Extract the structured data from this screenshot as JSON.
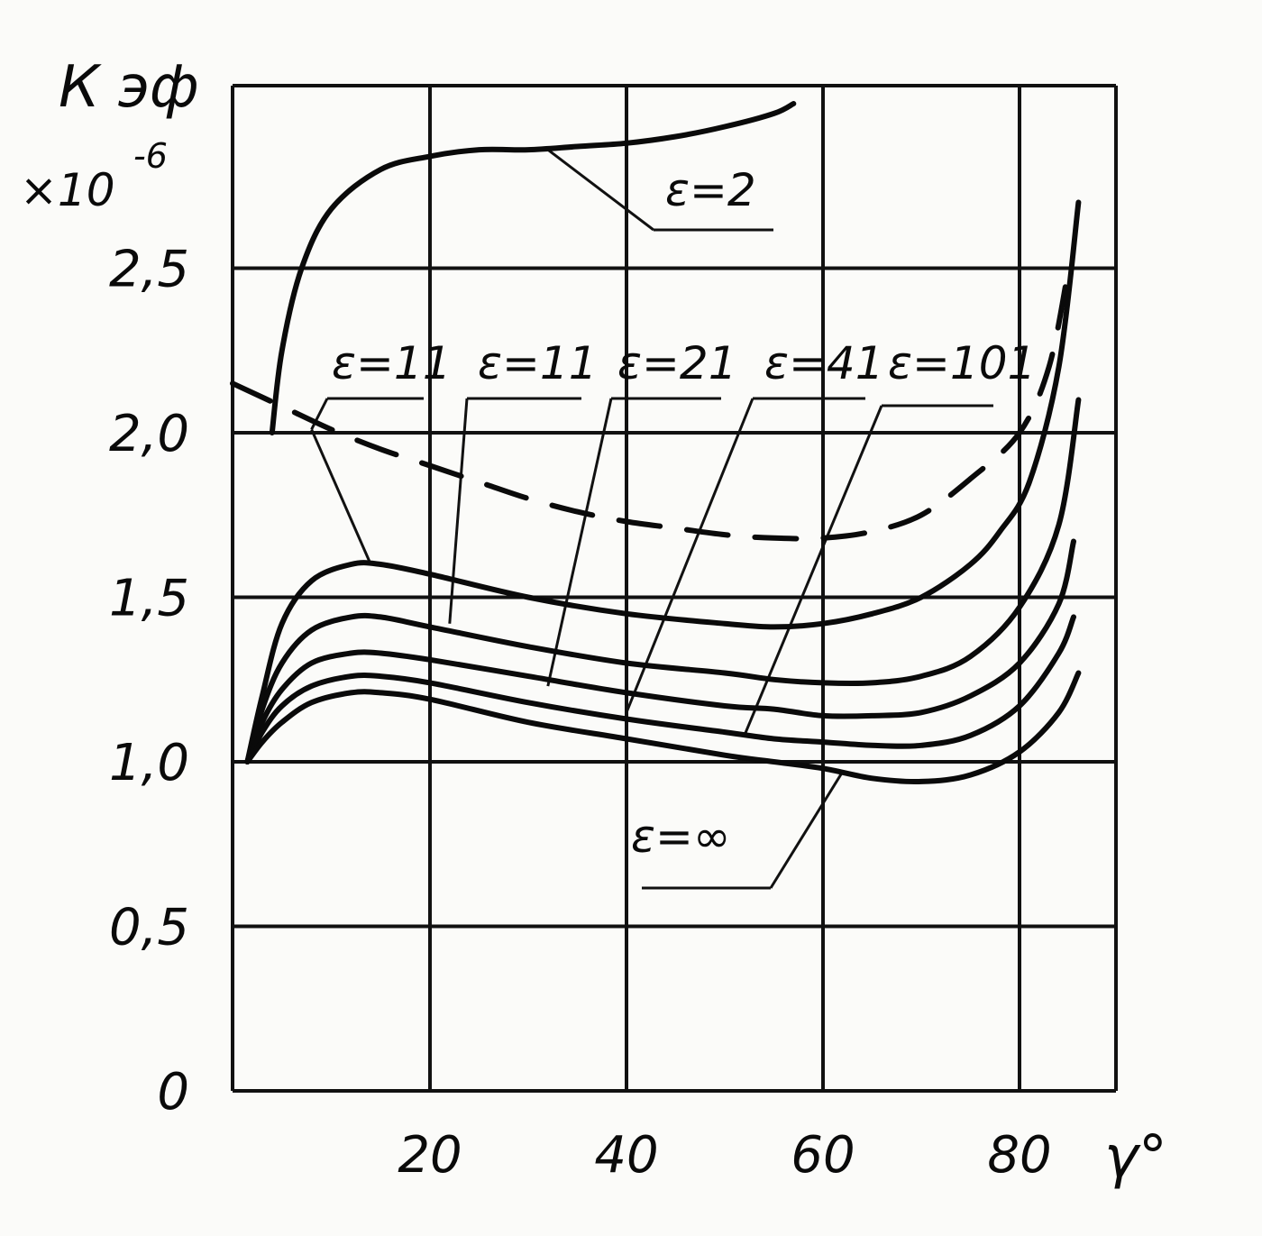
{
  "chart_data": {
    "type": "line",
    "ylabel": "К эф",
    "ylabel_multiplier": "×10",
    "ylabel_exponent": "-6",
    "xlabel": "γ°",
    "xlim": [
      0,
      90
    ],
    "ylim": [
      0,
      3
    ],
    "x_ticks": [
      "20",
      "40",
      "60",
      "80"
    ],
    "y_ticks": [
      "0",
      "0,5",
      "1,0",
      "1,5",
      "2,0",
      "2,5"
    ],
    "grid": true,
    "series": [
      {
        "name": "ε=2",
        "style": "solid",
        "x": [
          4,
          5,
          7,
          10,
          15,
          20,
          25,
          30,
          35,
          40,
          45,
          50,
          55,
          57
        ],
        "y": [
          2.0,
          2.25,
          2.5,
          2.68,
          2.8,
          2.84,
          2.86,
          2.86,
          2.87,
          2.88,
          2.9,
          2.93,
          2.97,
          3.0
        ]
      },
      {
        "name": "ε=11",
        "style": "dashed",
        "x": [
          0,
          5,
          10,
          15,
          20,
          25,
          30,
          35,
          40,
          45,
          50,
          55,
          60,
          65,
          70,
          75,
          80,
          83,
          85
        ],
        "y": [
          2.15,
          2.08,
          2.01,
          1.95,
          1.9,
          1.85,
          1.8,
          1.76,
          1.73,
          1.71,
          1.69,
          1.68,
          1.68,
          1.7,
          1.75,
          1.86,
          2.0,
          2.2,
          2.5
        ]
      },
      {
        "name": "ε=11",
        "style": "solid",
        "x": [
          1.5,
          3,
          5,
          8,
          12,
          15,
          20,
          30,
          40,
          50,
          55,
          60,
          65,
          70,
          75,
          78,
          81,
          84,
          86
        ],
        "y": [
          1.0,
          1.2,
          1.42,
          1.55,
          1.6,
          1.6,
          1.57,
          1.5,
          1.45,
          1.42,
          1.41,
          1.42,
          1.45,
          1.5,
          1.6,
          1.7,
          1.85,
          2.2,
          2.7
        ]
      },
      {
        "name": "ε=21",
        "style": "solid",
        "x": [
          1.5,
          3,
          5,
          8,
          12,
          15,
          20,
          30,
          40,
          50,
          55,
          60,
          65,
          70,
          75,
          80,
          84,
          86
        ],
        "y": [
          1.0,
          1.16,
          1.3,
          1.4,
          1.44,
          1.44,
          1.41,
          1.35,
          1.3,
          1.27,
          1.25,
          1.24,
          1.24,
          1.26,
          1.32,
          1.47,
          1.72,
          2.1
        ]
      },
      {
        "name": "ε=41",
        "style": "solid",
        "x": [
          1.5,
          3,
          5,
          8,
          12,
          15,
          20,
          30,
          40,
          50,
          55,
          60,
          65,
          70,
          75,
          80,
          84,
          85.5
        ],
        "y": [
          1.0,
          1.12,
          1.22,
          1.3,
          1.33,
          1.33,
          1.31,
          1.26,
          1.21,
          1.17,
          1.16,
          1.14,
          1.14,
          1.15,
          1.2,
          1.3,
          1.48,
          1.67
        ]
      },
      {
        "name": "ε=101",
        "style": "solid",
        "x": [
          1.5,
          3,
          5,
          8,
          12,
          15,
          20,
          30,
          40,
          50,
          55,
          60,
          65,
          70,
          75,
          80,
          84,
          85.5
        ],
        "y": [
          1.0,
          1.09,
          1.17,
          1.23,
          1.26,
          1.26,
          1.24,
          1.18,
          1.13,
          1.09,
          1.07,
          1.06,
          1.05,
          1.05,
          1.08,
          1.17,
          1.33,
          1.44
        ]
      },
      {
        "name": "ε=∞",
        "style": "solid",
        "x": [
          1.5,
          3,
          5,
          8,
          12,
          15,
          20,
          30,
          40,
          50,
          55,
          60,
          65,
          70,
          75,
          80,
          84,
          86
        ],
        "y": [
          1.0,
          1.06,
          1.12,
          1.18,
          1.21,
          1.21,
          1.19,
          1.12,
          1.07,
          1.02,
          1.0,
          0.98,
          0.95,
          0.94,
          0.96,
          1.03,
          1.15,
          1.27
        ]
      }
    ],
    "annotations": [
      {
        "text": "ε=2",
        "target_x": 32,
        "target_y": 2.86
      },
      {
        "text": "ε=11",
        "target_x": 8,
        "target_y": 2.01,
        "target2_x": 14,
        "target2_y": 1.6
      },
      {
        "text": "ε=11",
        "target_x": 22,
        "target_y": 1.42
      },
      {
        "text": "ε=21",
        "target_x": 32,
        "target_y": 1.23
      },
      {
        "text": "ε=41",
        "target_x": 40,
        "target_y": 1.15
      },
      {
        "text": "ε=101",
        "target_x": 52,
        "target_y": 1.08
      },
      {
        "text": "ε=∞",
        "target_x": 62,
        "target_y": 0.97
      }
    ]
  }
}
